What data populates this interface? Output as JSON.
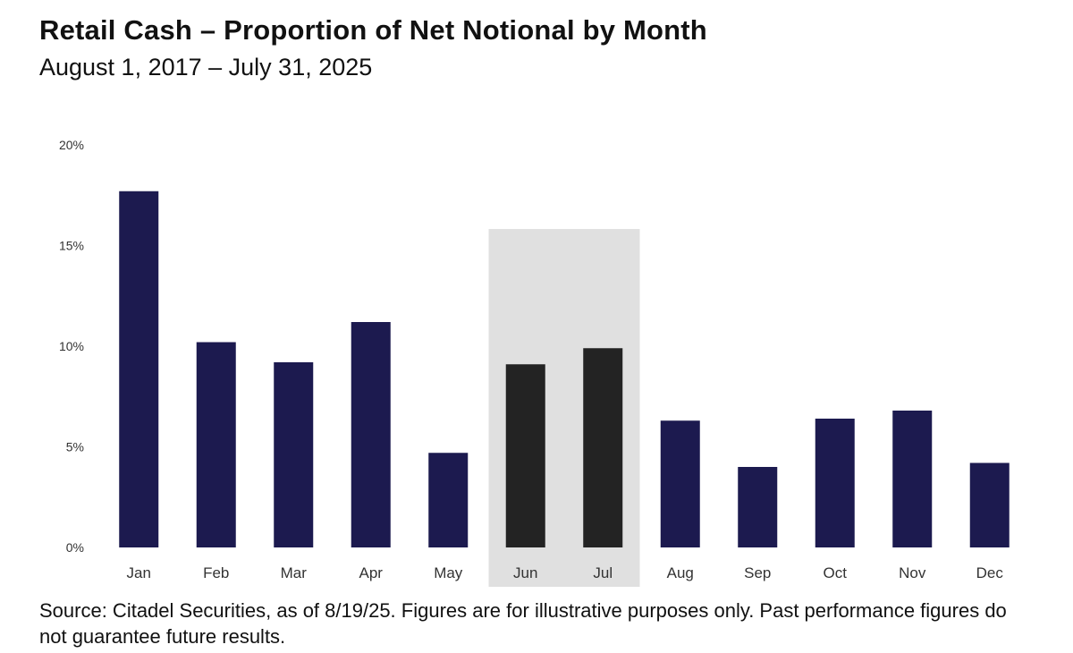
{
  "title": "Retail Cash – Proportion of Net Notional by Month",
  "subtitle": "August 1, 2017 – July 31, 2025",
  "source": "Source: Citadel Securities, as of 8/19/25. Figures are for illustrative purposes only. Past performance figures do not guarantee future results.",
  "colors": {
    "bar": "#1c1a4f",
    "highlight_bar": "#232323",
    "highlight_band": "#e0e0e0"
  },
  "chart_data": {
    "type": "bar",
    "title": "Retail Cash – Proportion of Net Notional by Month",
    "subtitle": "August 1, 2017 – July 31, 2025",
    "xlabel": "",
    "ylabel": "",
    "categories": [
      "Jan",
      "Feb",
      "Mar",
      "Apr",
      "May",
      "Jun",
      "Jul",
      "Aug",
      "Sep",
      "Oct",
      "Nov",
      "Dec"
    ],
    "values": [
      17.7,
      10.2,
      9.2,
      11.2,
      4.7,
      9.1,
      9.9,
      6.3,
      4.0,
      6.4,
      6.8,
      4.2
    ],
    "highlighted_categories": [
      "Jun",
      "Jul"
    ],
    "ylim": [
      0,
      20
    ],
    "yticks": [
      0,
      5,
      10,
      15,
      20
    ],
    "ytick_labels": [
      "0%",
      "5%",
      "10%",
      "15%",
      "20%"
    ],
    "grid": false,
    "legend": "none"
  }
}
